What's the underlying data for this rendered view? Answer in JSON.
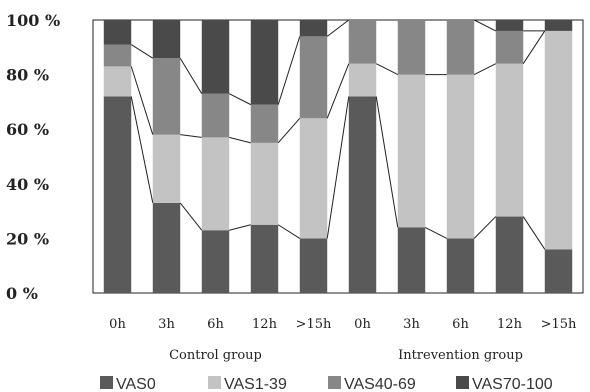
{
  "chart_data": {
    "type": "bar",
    "stacked": true,
    "normalized_percent": true,
    "categories": [
      "0h",
      "3h",
      "6h",
      "12h",
      ">15h",
      "0h",
      "3h",
      "6h",
      "12h",
      ">15h"
    ],
    "groups": [
      {
        "label": "Control group",
        "categories": [
          "0h",
          "3h",
          "6h",
          "12h",
          ">15h"
        ]
      },
      {
        "label": "Intrevention group",
        "categories": [
          "0h",
          "3h",
          "6h",
          "12h",
          ">15h"
        ]
      }
    ],
    "series": [
      {
        "name": "VAS0",
        "color": "#5a5a5a",
        "values": [
          72,
          33,
          23,
          25,
          20,
          72,
          24,
          20,
          28,
          16
        ]
      },
      {
        "name": "VAS1-39",
        "color": "#c3c3c3",
        "values": [
          11,
          25,
          34,
          30,
          44,
          12,
          56,
          60,
          56,
          80
        ]
      },
      {
        "name": "VAS40-69",
        "color": "#878787",
        "values": [
          8,
          28,
          16,
          14,
          30,
          16,
          20,
          20,
          12,
          0
        ]
      },
      {
        "name": "VAS70-100",
        "color": "#4a4a4a",
        "values": [
          9,
          14,
          27,
          31,
          6,
          0,
          0,
          0,
          4,
          4
        ]
      }
    ],
    "ylim": [
      0,
      100
    ],
    "yticks": [
      "0 %",
      "20 %",
      "40 %",
      "60 %",
      "80 %",
      "100 %"
    ],
    "connector_lines": true,
    "legend_position": "bottom"
  }
}
